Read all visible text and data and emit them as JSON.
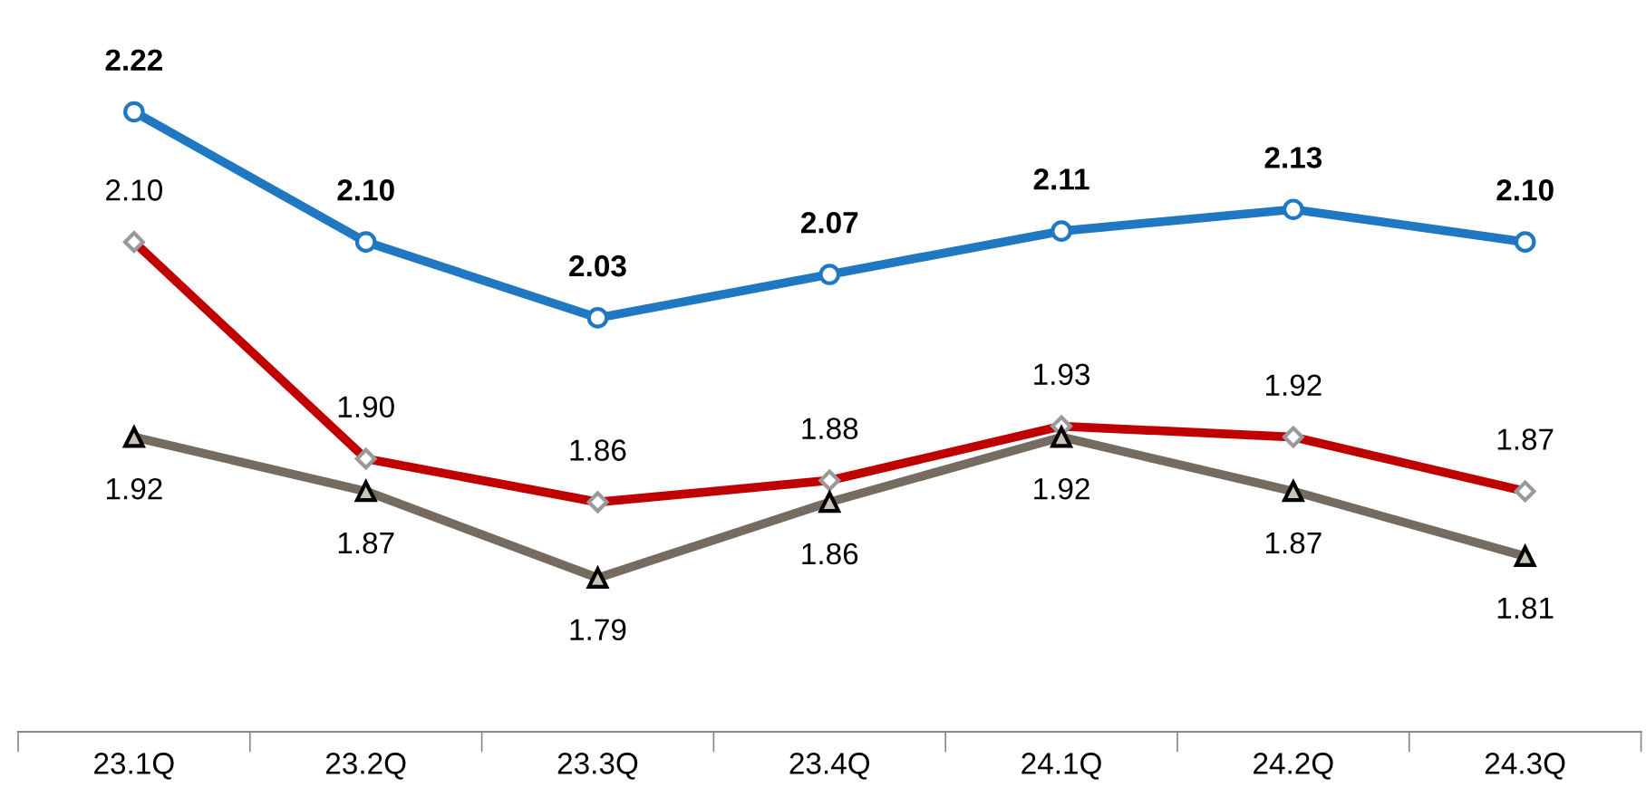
{
  "chart_data": {
    "type": "line",
    "categories": [
      "23.1Q",
      "23.2Q",
      "23.3Q",
      "23.4Q",
      "24.1Q",
      "24.2Q",
      "24.3Q"
    ],
    "series": [
      {
        "color": "#1f78c1",
        "marker": "circle",
        "values": [
          2.22,
          2.1,
          2.03,
          2.07,
          2.11,
          2.13,
          2.1
        ],
        "value_labels": [
          "2.22",
          "2.10",
          "2.03",
          "2.07",
          "2.11",
          "2.13",
          "2.10"
        ]
      },
      {
        "color": "#c00000",
        "marker": "diamond",
        "values": [
          2.1,
          1.9,
          1.86,
          1.88,
          1.93,
          1.92,
          1.87
        ],
        "value_labels": [
          "2.10",
          "1.90",
          "1.86",
          "1.88",
          "1.93",
          "1.92",
          "1.87"
        ]
      },
      {
        "color": "#766b61",
        "marker": "triangle",
        "values": [
          1.92,
          1.87,
          1.79,
          1.86,
          1.92,
          1.87,
          1.81
        ],
        "value_labels": [
          "1.92",
          "1.87",
          "1.79",
          "1.86",
          "1.92",
          "1.87",
          "1.81"
        ]
      }
    ],
    "grid": false,
    "line_style": "solid"
  }
}
